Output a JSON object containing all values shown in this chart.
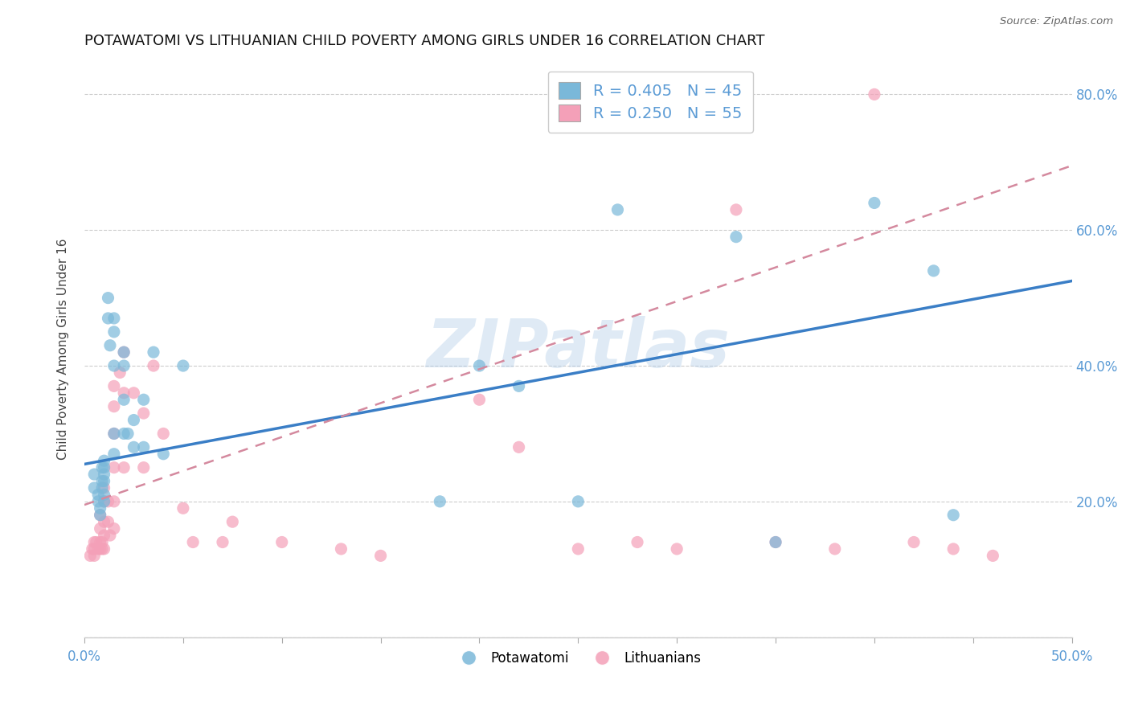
{
  "title": "POTAWATOMI VS LITHUANIAN CHILD POVERTY AMONG GIRLS UNDER 16 CORRELATION CHART",
  "source": "Source: ZipAtlas.com",
  "ylabel": "Child Poverty Among Girls Under 16",
  "xlim": [
    0.0,
    0.5
  ],
  "ylim": [
    0.0,
    0.85
  ],
  "xtick_positions": [
    0.0,
    0.05,
    0.1,
    0.15,
    0.2,
    0.25,
    0.3,
    0.35,
    0.4,
    0.45,
    0.5
  ],
  "xticklabels": [
    "0.0%",
    "",
    "",
    "",
    "",
    "",
    "",
    "",
    "",
    "",
    "50.0%"
  ],
  "ytick_positions": [
    0.0,
    0.2,
    0.4,
    0.6,
    0.8
  ],
  "yticklabels_right": [
    "",
    "20.0%",
    "40.0%",
    "60.0%",
    "80.0%"
  ],
  "watermark": "ZIPatlas",
  "color_potawatomi": "#7ab8d9",
  "color_lithuanian": "#f4a0b8",
  "color_line_blue": "#3a7ec6",
  "color_line_dashed": "#d4899e",
  "background_color": "#ffffff",
  "grid_color": "#cccccc",
  "tick_color": "#5b9bd5",
  "title_fontsize": 13,
  "axis_label_fontsize": 11,
  "tick_fontsize": 12,
  "legend_fontsize": 14,
  "watermark_color": "#b0cce8",
  "watermark_fontsize": 60,
  "potawatomi_x": [
    0.005,
    0.005,
    0.007,
    0.007,
    0.008,
    0.008,
    0.009,
    0.009,
    0.009,
    0.01,
    0.01,
    0.01,
    0.01,
    0.01,
    0.01,
    0.012,
    0.012,
    0.013,
    0.015,
    0.015,
    0.015,
    0.015,
    0.015,
    0.02,
    0.02,
    0.02,
    0.02,
    0.022,
    0.025,
    0.025,
    0.03,
    0.03,
    0.035,
    0.04,
    0.05,
    0.18,
    0.2,
    0.22,
    0.25,
    0.27,
    0.33,
    0.35,
    0.4,
    0.43,
    0.44
  ],
  "potawatomi_y": [
    0.24,
    0.22,
    0.21,
    0.2,
    0.19,
    0.18,
    0.25,
    0.23,
    0.22,
    0.26,
    0.25,
    0.24,
    0.23,
    0.21,
    0.2,
    0.5,
    0.47,
    0.43,
    0.47,
    0.45,
    0.4,
    0.3,
    0.27,
    0.42,
    0.4,
    0.35,
    0.3,
    0.3,
    0.32,
    0.28,
    0.35,
    0.28,
    0.42,
    0.27,
    0.4,
    0.2,
    0.4,
    0.37,
    0.2,
    0.63,
    0.59,
    0.14,
    0.64,
    0.54,
    0.18
  ],
  "lithuanian_x": [
    0.003,
    0.004,
    0.005,
    0.005,
    0.005,
    0.006,
    0.007,
    0.008,
    0.008,
    0.008,
    0.008,
    0.009,
    0.009,
    0.01,
    0.01,
    0.01,
    0.01,
    0.01,
    0.012,
    0.012,
    0.013,
    0.015,
    0.015,
    0.015,
    0.015,
    0.015,
    0.015,
    0.018,
    0.02,
    0.02,
    0.02,
    0.025,
    0.03,
    0.03,
    0.035,
    0.04,
    0.05,
    0.055,
    0.07,
    0.075,
    0.1,
    0.13,
    0.15,
    0.2,
    0.22,
    0.25,
    0.28,
    0.3,
    0.33,
    0.35,
    0.38,
    0.4,
    0.42,
    0.44,
    0.46
  ],
  "lithuanian_y": [
    0.12,
    0.13,
    0.14,
    0.13,
    0.12,
    0.14,
    0.13,
    0.18,
    0.16,
    0.14,
    0.13,
    0.14,
    0.13,
    0.22,
    0.2,
    0.17,
    0.15,
    0.13,
    0.2,
    0.17,
    0.15,
    0.37,
    0.34,
    0.3,
    0.25,
    0.2,
    0.16,
    0.39,
    0.42,
    0.36,
    0.25,
    0.36,
    0.33,
    0.25,
    0.4,
    0.3,
    0.19,
    0.14,
    0.14,
    0.17,
    0.14,
    0.13,
    0.12,
    0.35,
    0.28,
    0.13,
    0.14,
    0.13,
    0.63,
    0.14,
    0.13,
    0.8,
    0.14,
    0.13,
    0.12
  ],
  "blue_line_x0": 0.0,
  "blue_line_y0": 0.255,
  "blue_line_x1": 0.5,
  "blue_line_y1": 0.525,
  "dashed_line_x0": 0.0,
  "dashed_line_y0": 0.195,
  "dashed_line_x1": 0.5,
  "dashed_line_y1": 0.695
}
